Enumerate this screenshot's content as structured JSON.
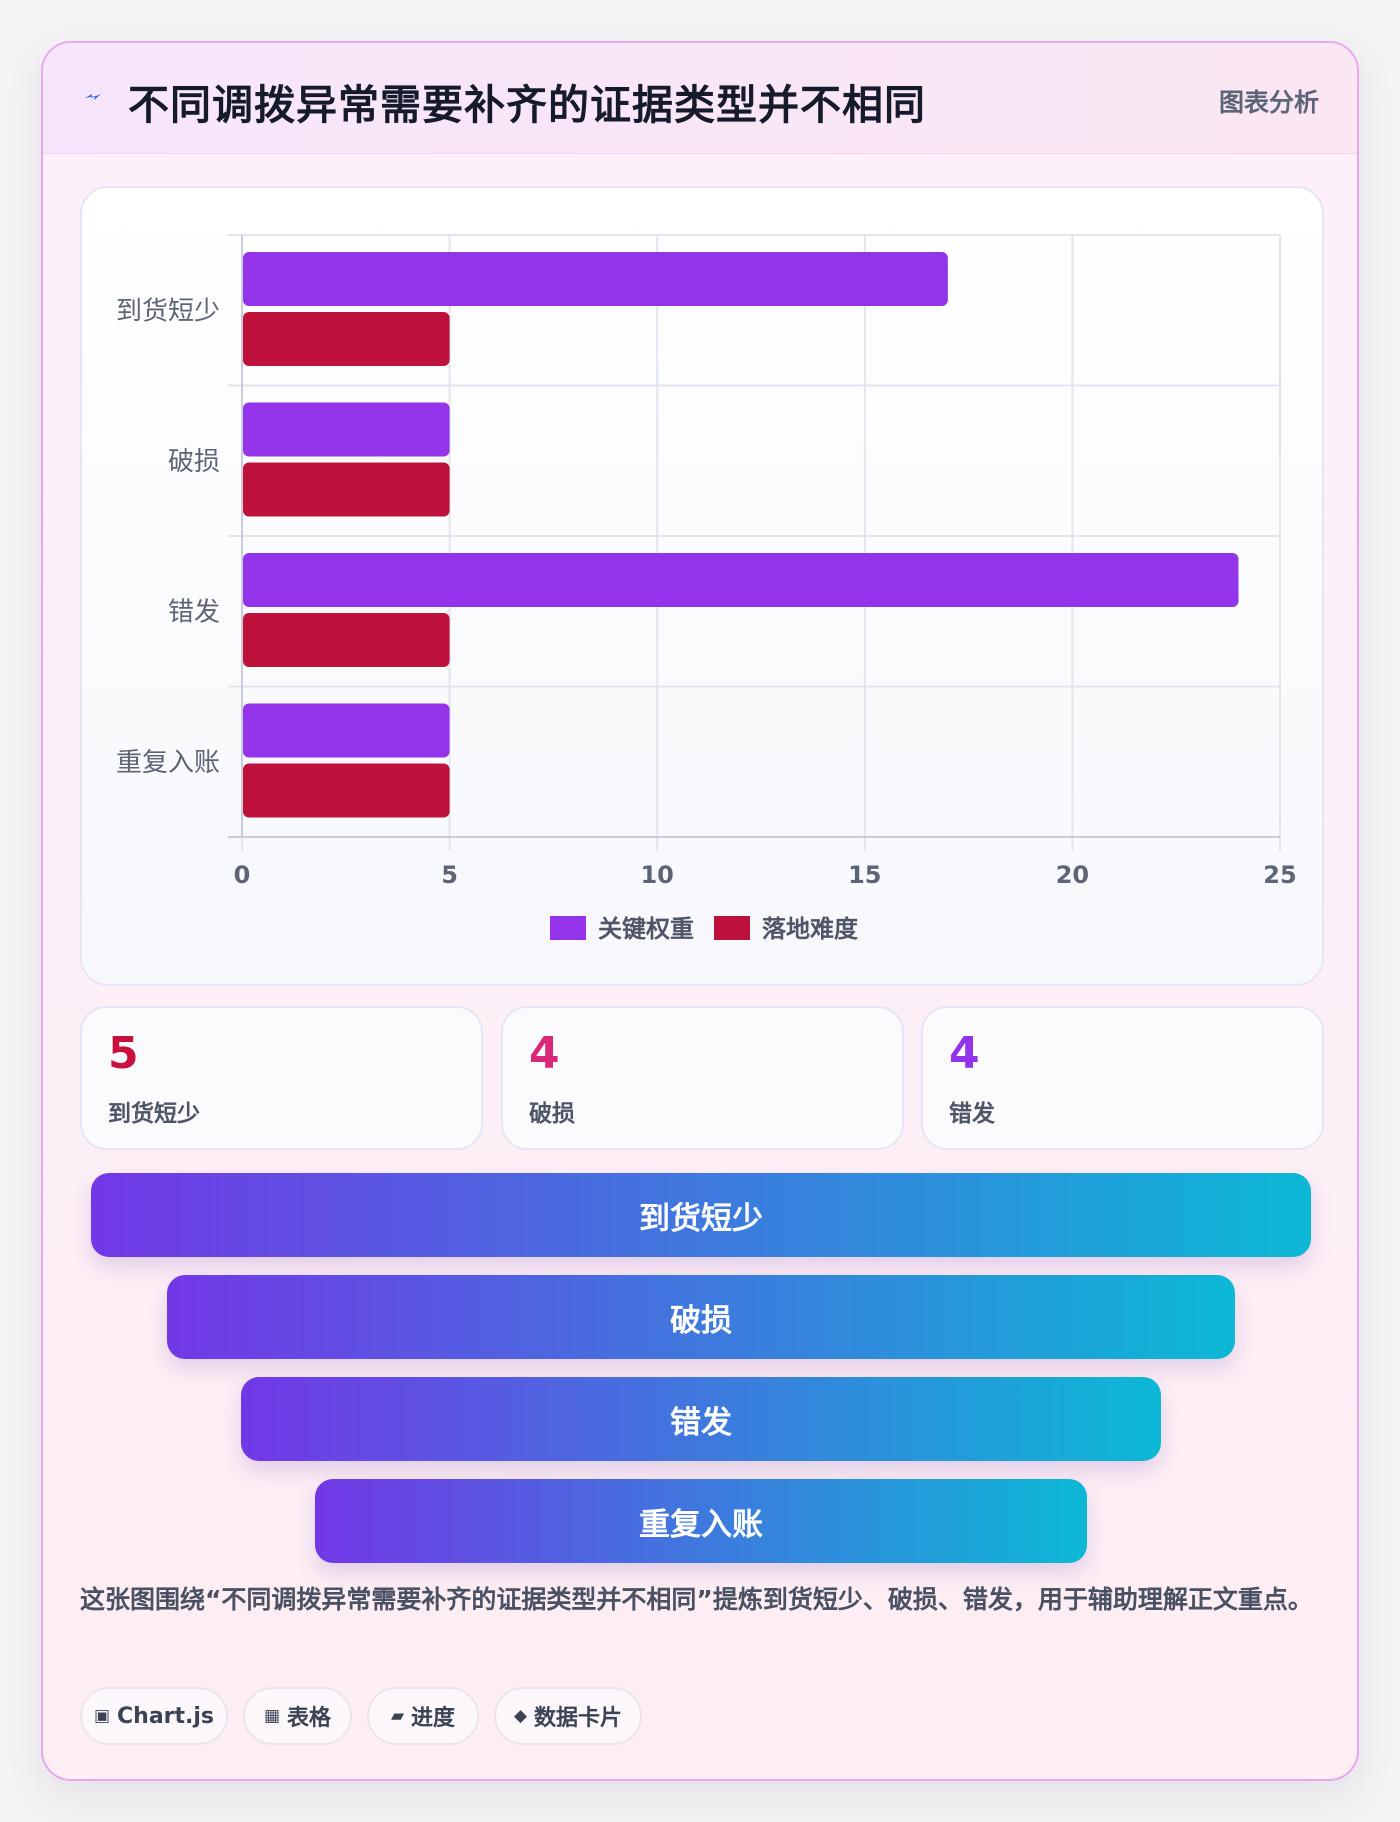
{
  "header": {
    "icon": "lightning-icon",
    "title": "不同调拨异常需要补齐的证据类型并不相同",
    "tag": "图表分析"
  },
  "chart_data": {
    "type": "bar",
    "orientation": "horizontal",
    "categories": [
      "到货短少",
      "破损",
      "错发",
      "重复入账"
    ],
    "series": [
      {
        "name": "关键权重",
        "values": [
          17,
          5,
          24,
          5
        ],
        "color": "#9333ea"
      },
      {
        "name": "落地难度",
        "values": [
          5,
          5,
          5,
          5
        ],
        "color": "#be123c"
      }
    ],
    "xlim": [
      0,
      25
    ],
    "xticks": [
      0,
      5,
      10,
      15,
      20,
      25
    ],
    "grid": true,
    "legend": "bottom-center"
  },
  "stats": [
    {
      "value": "5",
      "label": "到货短少",
      "color": "#c8113d"
    },
    {
      "value": "4",
      "label": "破损",
      "color": "#db2777"
    },
    {
      "value": "4",
      "label": "错发",
      "color": "#9333ea"
    }
  ],
  "funnel": [
    "到货短少",
    "破损",
    "错发",
    "重复入账"
  ],
  "description": "这张图围绕“不同调拨异常需要补齐的证据类型并不相同”提炼到货短少、破损、错发，用于辅助理解正文重点。",
  "chips": [
    {
      "icon": "chip-icon-square",
      "glyph": "▣",
      "label": "Chart.js"
    },
    {
      "icon": "table-icon",
      "glyph": "▦",
      "label": "表格"
    },
    {
      "icon": "progress-icon",
      "glyph": "▰",
      "label": "进度"
    },
    {
      "icon": "diamond-icon",
      "glyph": "◆",
      "label": "数据卡片"
    }
  ]
}
